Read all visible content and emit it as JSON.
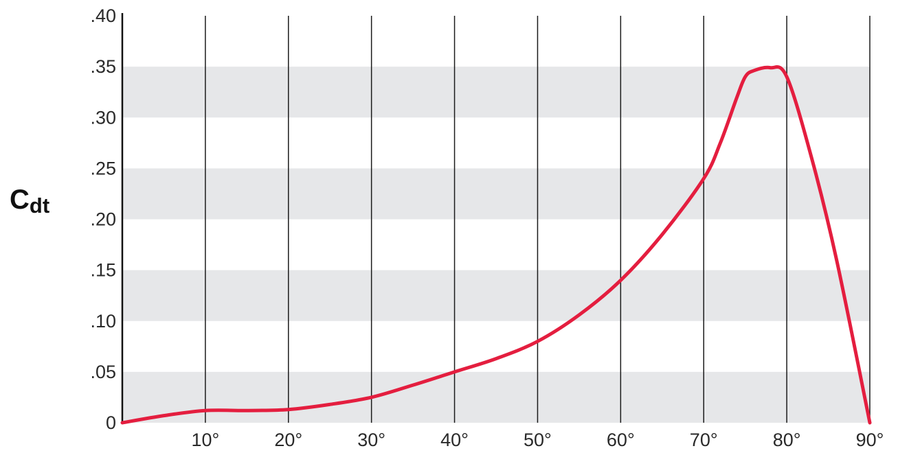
{
  "chart_data": {
    "type": "line",
    "ylabel": "C",
    "ylabel_subscript": "dt",
    "xlim": [
      0,
      90
    ],
    "ylim": [
      0,
      0.4
    ],
    "x_ticks": [
      10,
      20,
      30,
      40,
      50,
      60,
      70,
      80,
      90
    ],
    "x_tick_labels": [
      "10°",
      "20°",
      "30°",
      "40°",
      "50°",
      "60°",
      "70°",
      "80°",
      "90°"
    ],
    "y_ticks": [
      0,
      0.05,
      0.1,
      0.15,
      0.2,
      0.25,
      0.3,
      0.35,
      0.4
    ],
    "y_tick_labels": [
      "0",
      ".05",
      ".10",
      ".15",
      ".20",
      ".25",
      ".30",
      ".35",
      ".40"
    ],
    "grid": true,
    "band_color": "#e6e7e9",
    "grid_line_color": "#1a1a1a",
    "line_color": "#e41e3f",
    "series": [
      {
        "x": [
          0,
          5,
          10,
          15,
          20,
          25,
          30,
          35,
          40,
          45,
          50,
          55,
          60,
          65,
          70,
          72,
          74,
          75,
          76,
          78,
          80,
          83,
          86,
          90
        ],
        "y": [
          0,
          0.007,
          0.012,
          0.012,
          0.013,
          0.018,
          0.025,
          0.037,
          0.05,
          0.063,
          0.08,
          0.106,
          0.14,
          0.185,
          0.24,
          0.275,
          0.32,
          0.34,
          0.346,
          0.349,
          0.34,
          0.26,
          0.16,
          0
        ]
      }
    ]
  }
}
